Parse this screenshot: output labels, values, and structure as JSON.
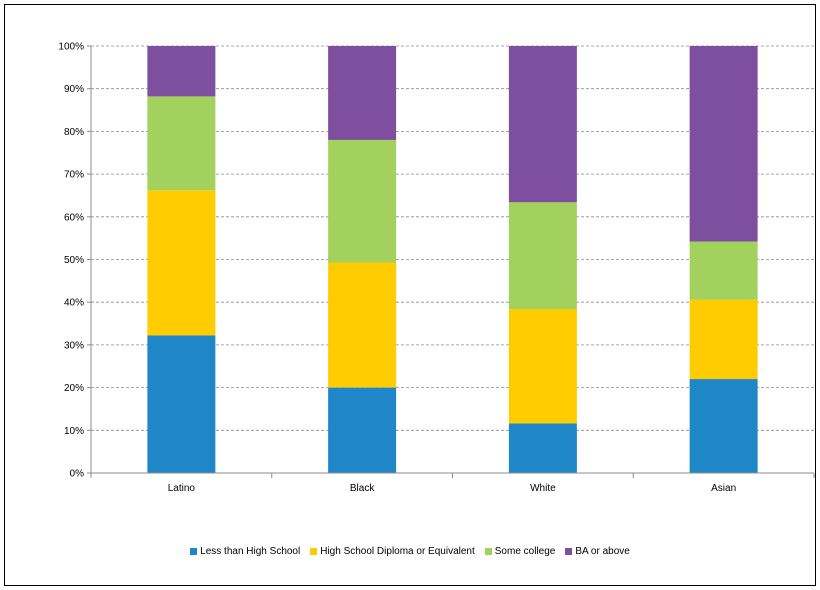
{
  "chart_data": {
    "type": "bar",
    "stacked": true,
    "categories": [
      "Latino",
      "Black",
      "White",
      "Asian"
    ],
    "series": [
      {
        "name": "Less than High School",
        "color": "#1f86c8",
        "values": [
          32.2,
          20.0,
          11.6,
          22.0
        ]
      },
      {
        "name": "High School Diploma or Equivalent",
        "color": "#ffcc00",
        "values": [
          34.0,
          29.3,
          26.8,
          18.6
        ]
      },
      {
        "name": "Some college",
        "color": "#a3d15e",
        "values": [
          22.0,
          28.7,
          25.0,
          13.6
        ]
      },
      {
        "name": "BA or above",
        "color": "#7f4f9f",
        "values": [
          11.8,
          22.0,
          36.6,
          45.8
        ]
      }
    ],
    "ylim": [
      0,
      100
    ],
    "yticks": [
      "0%",
      "10%",
      "20%",
      "30%",
      "40%",
      "50%",
      "60%",
      "70%",
      "80%",
      "90%",
      "100%"
    ],
    "grid": true,
    "legend_position": "bottom"
  }
}
